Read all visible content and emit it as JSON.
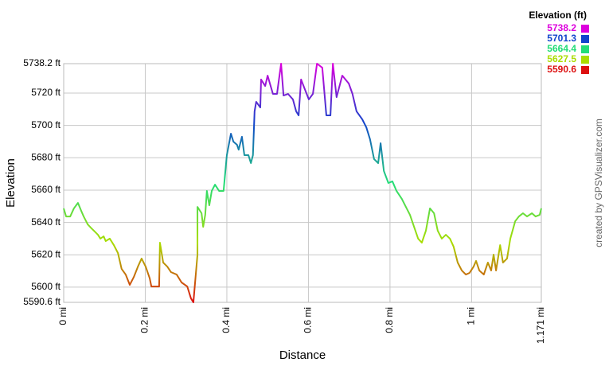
{
  "chart_data": {
    "type": "line",
    "xlabel": "Distance",
    "ylabel": "Elevation",
    "credit": "created by GPSVisualizer.com",
    "grid": true,
    "legend": {
      "title": "Elevation (ft)",
      "corner": "top-right",
      "entries": [
        {
          "value": 5738.2,
          "color": "#dd00dd"
        },
        {
          "value": 5701.3,
          "color": "#1144cc"
        },
        {
          "value": 5664.4,
          "color": "#22dd77"
        },
        {
          "value": 5627.5,
          "color": "#aadd00"
        },
        {
          "value": 5590.6,
          "color": "#dd1111"
        }
      ]
    },
    "xlim": [
      0,
      1.171
    ],
    "xticks": [
      {
        "value": 0,
        "label": "0 mi"
      },
      {
        "value": 0.2,
        "label": "0.2 mi"
      },
      {
        "value": 0.4,
        "label": "0.4 mi"
      },
      {
        "value": 0.6,
        "label": "0.6 mi"
      },
      {
        "value": 0.8,
        "label": "0.8 mi"
      },
      {
        "value": 1,
        "label": "1 mi"
      },
      {
        "value": 1.171,
        "label": "1.171 mi"
      }
    ],
    "ylim": [
      5590.6,
      5738.2
    ],
    "yticks": [
      {
        "value": 5590.6,
        "label": "5590.6 ft"
      },
      {
        "value": 5600,
        "label": "5600 ft"
      },
      {
        "value": 5620,
        "label": "5620 ft"
      },
      {
        "value": 5640,
        "label": "5640 ft"
      },
      {
        "value": 5660,
        "label": "5660 ft"
      },
      {
        "value": 5680,
        "label": "5680 ft"
      },
      {
        "value": 5700,
        "label": "5700 ft"
      },
      {
        "value": 5720,
        "label": "5720 ft"
      },
      {
        "value": 5738.2,
        "label": "5738.2 ft"
      }
    ],
    "x": [
      0,
      0.006,
      0.016,
      0.025,
      0.035,
      0.043,
      0.049,
      0.059,
      0.068,
      0.074,
      0.084,
      0.09,
      0.098,
      0.103,
      0.113,
      0.123,
      0.133,
      0.142,
      0.152,
      0.162,
      0.172,
      0.182,
      0.191,
      0.201,
      0.211,
      0.215,
      0.234,
      0.236,
      0.244,
      0.254,
      0.263,
      0.277,
      0.289,
      0.303,
      0.312,
      0.318,
      0.328,
      0.328,
      0.338,
      0.342,
      0.347,
      0.351,
      0.357,
      0.363,
      0.371,
      0.381,
      0.392,
      0.4,
      0.41,
      0.416,
      0.425,
      0.429,
      0.437,
      0.443,
      0.453,
      0.459,
      0.464,
      0.468,
      0.472,
      0.482,
      0.484,
      0.494,
      0.5,
      0.513,
      0.523,
      0.533,
      0.539,
      0.55,
      0.562,
      0.57,
      0.576,
      0.582,
      0.591,
      0.601,
      0.611,
      0.621,
      0.634,
      0.644,
      0.654,
      0.66,
      0.669,
      0.683,
      0.699,
      0.708,
      0.718,
      0.732,
      0.742,
      0.751,
      0.761,
      0.771,
      0.777,
      0.785,
      0.796,
      0.806,
      0.816,
      0.829,
      0.839,
      0.849,
      0.859,
      0.869,
      0.878,
      0.888,
      0.898,
      0.908,
      0.917,
      0.927,
      0.937,
      0.947,
      0.956,
      0.966,
      0.976,
      0.986,
      0.995,
      1.005,
      1.011,
      1.019,
      1.03,
      1.04,
      1.048,
      1.054,
      1.06,
      1.07,
      1.077,
      1.087,
      1.095,
      1.107,
      1.116,
      1.126,
      1.136,
      1.148,
      1.157,
      1.167,
      1.171
    ],
    "values": [
      5648.7,
      5643.7,
      5643.7,
      5648.7,
      5652.1,
      5647.2,
      5643.7,
      5638.8,
      5636.4,
      5634.9,
      5632.4,
      5630,
      5631.4,
      5628.5,
      5630,
      5626,
      5621.1,
      5611.3,
      5607.8,
      5601.4,
      5606.3,
      5612.7,
      5617.7,
      5612.7,
      5605.4,
      5600.4,
      5600.4,
      5627.5,
      5615.2,
      5612.7,
      5609.3,
      5607.8,
      5602.9,
      5600.4,
      5593.1,
      5590.6,
      5620.1,
      5649.6,
      5645.7,
      5637.3,
      5644.7,
      5659.5,
      5650.6,
      5659.5,
      5663.4,
      5659.5,
      5659.5,
      5681.6,
      5694.9,
      5690,
      5688,
      5685,
      5693,
      5681.6,
      5681.6,
      5676.7,
      5681.6,
      5708.7,
      5714.6,
      5711.1,
      5728.4,
      5724.4,
      5730.8,
      5719.5,
      5719.5,
      5738.2,
      5718.5,
      5719.5,
      5716.1,
      5708.7,
      5706.2,
      5728.4,
      5722.5,
      5716.1,
      5719.5,
      5738.2,
      5735.7,
      5706.2,
      5706.2,
      5738.2,
      5717.5,
      5730.8,
      5725.9,
      5719.5,
      5708.7,
      5703.8,
      5698.8,
      5691.5,
      5679.2,
      5676.7,
      5689,
      5671.8,
      5664.4,
      5665.4,
      5659.5,
      5654.6,
      5649.6,
      5644.7,
      5637.3,
      5630,
      5627.5,
      5634.9,
      5648.7,
      5645.7,
      5634.9,
      5630,
      5632.4,
      5630,
      5625,
      5615.2,
      5610.3,
      5607.8,
      5608.8,
      5612.7,
      5616.2,
      5610.3,
      5607.8,
      5615.2,
      5610.3,
      5620.1,
      5610.3,
      5626,
      5615.2,
      5617.7,
      5630,
      5640.8,
      5643.7,
      5645.7,
      5643.7,
      5645.7,
      5643.7,
      5644.7,
      5648.7
    ]
  }
}
